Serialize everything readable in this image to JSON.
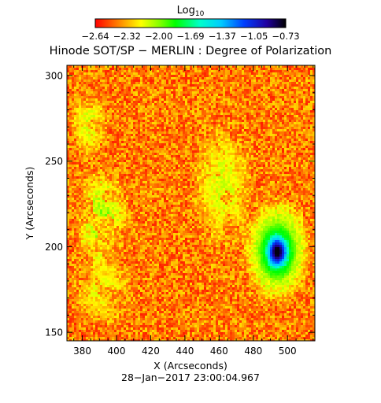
{
  "chart_data": {
    "type": "heatmap",
    "title": "Hinode SOT/SP − MERLIN : Degree of Polarization",
    "colorbar": {
      "label_base": "Log",
      "label_sub": "10",
      "ticks": [
        "−2.64",
        "−2.32",
        "−2.00",
        "−1.69",
        "−1.37",
        "−1.05",
        "−0.73"
      ],
      "range": [
        -2.64,
        -0.73
      ]
    },
    "xlabel": "X (Arcseconds)",
    "ylabel": "Y (Arcseconds)",
    "xlim": [
      371,
      516
    ],
    "ylim": [
      145,
      306
    ],
    "x_ticks": [
      {
        "value": 380,
        "label": "380"
      },
      {
        "value": 400,
        "label": "400"
      },
      {
        "value": 420,
        "label": "420"
      },
      {
        "value": 440,
        "label": "440"
      },
      {
        "value": 460,
        "label": "460"
      },
      {
        "value": 480,
        "label": "480"
      },
      {
        "value": 500,
        "label": "500"
      }
    ],
    "y_ticks": [
      {
        "value": 150,
        "label": "150"
      },
      {
        "value": 200,
        "label": "200"
      },
      {
        "value": 250,
        "label": "250"
      },
      {
        "value": 300,
        "label": "300"
      }
    ],
    "timestamp": "28−Jan−2017 23:00:04.967",
    "colormap": [
      "#ff0000",
      "#ff8000",
      "#ffff00",
      "#80ff00",
      "#00ff00",
      "#00ffcc",
      "#00ccff",
      "#0040ff",
      "#2000a0",
      "#000000"
    ],
    "features": [
      {
        "name": "sunspot-core",
        "x": 494,
        "y": 197,
        "rx": 8,
        "ry": 12,
        "level": -0.75
      },
      {
        "name": "sunspot-penumbra",
        "x": 494,
        "y": 198,
        "rx": 15,
        "ry": 23,
        "level": -1.75
      },
      {
        "name": "left-plage",
        "x": 392,
        "y": 215,
        "rx": 12,
        "ry": 25,
        "level": -1.95
      },
      {
        "name": "upper-left-plage",
        "x": 384,
        "y": 272,
        "rx": 9,
        "ry": 16,
        "level": -2.1
      },
      {
        "name": "diagonal-network",
        "x": 462,
        "y": 236,
        "rx": 14,
        "ry": 30,
        "level": -2.1
      },
      {
        "name": "lower-left-network",
        "x": 392,
        "y": 175,
        "rx": 14,
        "ry": 16,
        "level": -2.15
      }
    ]
  }
}
